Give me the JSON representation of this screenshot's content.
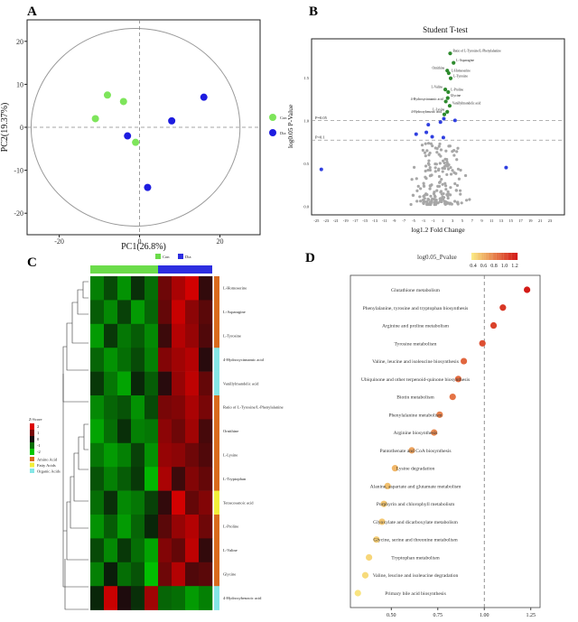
{
  "panels": {
    "a": "A",
    "b": "B",
    "c": "C",
    "d": "D"
  },
  "chart_data": [
    {
      "type": "scatter",
      "panel": "A",
      "xlabel": "PC1(26.8%)",
      "ylabel": "PC2(19.37%)",
      "xlim": [
        -28,
        30
      ],
      "ylim": [
        -25,
        25
      ],
      "xticks": [
        "-20",
        "0",
        "20"
      ],
      "yticks": [
        "20",
        "10",
        "0",
        "-10",
        "-20"
      ],
      "legend": [
        "Con",
        "Dia"
      ],
      "series": [
        {
          "name": "Con",
          "color": "#7ee55b",
          "points": [
            [
              -11,
              2
            ],
            [
              -8,
              7.5
            ],
            [
              -4,
              6
            ],
            [
              -1,
              -3.5
            ]
          ]
        },
        {
          "name": "Dia",
          "color": "#1d1ce0",
          "points": [
            [
              -3,
              -2
            ],
            [
              2,
              -14
            ],
            [
              8,
              1.5
            ],
            [
              16,
              7
            ]
          ]
        }
      ]
    },
    {
      "type": "scatter",
      "panel": "B",
      "title": "Student T-test",
      "xlabel": "log1.2 Fold Change",
      "ylabel": "log0.05 P-Value",
      "xlim": [
        -26,
        26
      ],
      "ylim": [
        -0.1,
        1.95
      ],
      "xticks": [
        "-25",
        "-23",
        "-21",
        "-19",
        "-17",
        "-15",
        "-13",
        "-11",
        "-9",
        "-7",
        "-5",
        "-3",
        "-1",
        "1",
        "3",
        "5",
        "7",
        "9",
        "11",
        "13",
        "15",
        "17",
        "19",
        "21",
        "23"
      ],
      "yticks": [
        "0.0",
        "0.5",
        "1.0",
        "1.5"
      ],
      "threshold_labels": [
        "P=0.05",
        "P=0.1"
      ],
      "thresholds": [
        1.0,
        0.77
      ],
      "significant": [
        {
          "label": "Ratio of L-Tyrosine/L-Phenylalanine",
          "x": 2.5,
          "y": 1.78
        },
        {
          "label": "L-Asparagine",
          "x": 3.2,
          "y": 1.67
        },
        {
          "label": "Ornithine",
          "x": 1.9,
          "y": 1.58
        },
        {
          "label": "L-Homoserine",
          "x": 2.2,
          "y": 1.55
        },
        {
          "label": "L-Tyrosine",
          "x": 2.6,
          "y": 1.49
        },
        {
          "label": "L-Valine",
          "x": 1.5,
          "y": 1.36
        },
        {
          "label": "L-Proline",
          "x": 2.1,
          "y": 1.33
        },
        {
          "label": "Glycine",
          "x": 2.0,
          "y": 1.26
        },
        {
          "label": "4-Hydroxycinnamic acid",
          "x": 1.6,
          "y": 1.22
        },
        {
          "label": "Vanillylmandelic acid",
          "x": 2.4,
          "y": 1.17
        },
        {
          "label": "L-Lysine",
          "x": 1.9,
          "y": 1.1
        },
        {
          "label": "4-Hydroxybenzoic acid",
          "x": 1.3,
          "y": 1.07
        }
      ]
    },
    {
      "type": "heatmap",
      "panel": "C",
      "groups": [
        "Con",
        "Dia"
      ],
      "group_colors": {
        "Con": "#6bdc4a",
        "Dia": "#2d2ee0"
      },
      "scale_title": "Z-Score",
      "scale_ticks": [
        "2",
        "1",
        "0",
        "-1",
        "-2"
      ],
      "class_legend": [
        {
          "name": "Amino Acid",
          "color": "#d96a1d"
        },
        {
          "name": "Fatty Acids",
          "color": "#f2ef3a"
        },
        {
          "name": "Organic Acids",
          "color": "#85e6e6"
        }
      ],
      "rows": [
        "L-Homoserine",
        "L-Asparagine",
        "L-Tyrosine",
        "4-Hydroxycinnamic acid",
        "Vanillylmandelic acid",
        "Ratio of L-Tyrosine/L-Phenylalanine",
        "Ornithine",
        "L-Lysine",
        "L-Tryptophan",
        "Tetracosanoic acid",
        "L-Proline",
        "L-Valine",
        "Glycine",
        "4-Hydroxybenzoic acid"
      ],
      "row_class": [
        "Amino Acid",
        "Amino Acid",
        "Amino Acid",
        "Organic Acids",
        "Organic Acids",
        "Amino Acid",
        "Amino Acid",
        "Amino Acid",
        "Amino Acid",
        "Fatty Acids",
        "Amino Acid",
        "Amino Acid",
        "Amino Acid",
        "Organic Acids"
      ],
      "values": [
        [
          -1.2,
          -0.6,
          -1.4,
          -0.3,
          -1.0,
          0.9,
          1.5,
          1.9,
          0.3
        ],
        [
          -0.8,
          -1.3,
          -0.5,
          -1.5,
          -0.9,
          0.8,
          1.8,
          1.2,
          0.7
        ],
        [
          -1.5,
          -0.4,
          -1.1,
          -0.8,
          -1.3,
          0.4,
          1.6,
          1.3,
          0.6
        ],
        [
          -0.9,
          -1.4,
          -1.0,
          -0.6,
          -1.2,
          1.1,
          1.4,
          1.6,
          0.2
        ],
        [
          -0.4,
          -1.1,
          -1.6,
          -0.2,
          -0.8,
          0.2,
          1.3,
          1.7,
          0.8
        ],
        [
          -1.3,
          -0.9,
          -0.7,
          -1.4,
          -0.6,
          1.0,
          1.1,
          1.5,
          1.0
        ],
        [
          -1.6,
          -1.0,
          -0.3,
          -1.2,
          -1.1,
          1.2,
          0.9,
          1.4,
          0.5
        ],
        [
          -1.1,
          -1.5,
          -1.2,
          -0.5,
          -1.4,
          1.3,
          1.2,
          0.9,
          0.6
        ],
        [
          -0.7,
          -1.2,
          -0.8,
          -0.4,
          -1.8,
          1.5,
          0.4,
          1.1,
          0.8
        ],
        [
          -1.0,
          -0.3,
          -1.3,
          -1.1,
          -0.5,
          0.3,
          1.9,
          0.8,
          1.1
        ],
        [
          -1.4,
          -0.8,
          -1.5,
          -0.9,
          -0.2,
          0.7,
          1.3,
          1.6,
          0.9
        ],
        [
          -0.6,
          -1.3,
          -0.4,
          -1.0,
          -1.6,
          1.1,
          0.8,
          1.7,
          0.3
        ],
        [
          -1.2,
          -0.1,
          -1.0,
          -0.7,
          -1.9,
          0.9,
          1.6,
          0.6,
          0.7
        ],
        [
          -0.2,
          1.8,
          0.1,
          -0.3,
          1.4,
          -0.9,
          -1.0,
          -1.5,
          -1.2
        ]
      ]
    },
    {
      "type": "scatter",
      "panel": "D",
      "legend_title": "log0.05_Pvalue",
      "colorbar_ticks": [
        "0.4",
        "0.6",
        "0.8",
        "1.0",
        "1.2"
      ],
      "color_range": [
        0.3,
        1.25
      ],
      "xlim": [
        0.28,
        1.3
      ],
      "xticks": [
        "0.50",
        "0.75",
        "1.00",
        "1.25"
      ],
      "vline": 1.0,
      "categories": [
        "Glutathione metabolism",
        "Phenylalanine, tyrosine and tryptophan biosynthesis",
        "Arginine and proline metabolism",
        "Tyrosine metabolism",
        "Valine, leucine and isoleucine biosynthesis",
        "Ubiquinone and other terpenoid-quinone biosynthesis",
        "Biotin metabolism",
        "Phenylalanine metabolism",
        "Arginine biosynthesis",
        "Pantothenate and CoA biosynthesis",
        "Lysine degradation",
        "Alanine, aspartate and glutamate metabolism",
        "Porphyrin and chlorophyll metabolism",
        "Glyoxylate and dicarboxylate metabolism",
        "Glycine, serine and threonine metabolism",
        "Tryptophan metabolism",
        "Valine, leucine and isoleucine degradation",
        "Primary bile acid biosynthesis"
      ],
      "values": [
        1.23,
        1.1,
        1.05,
        0.99,
        0.89,
        0.86,
        0.83,
        0.76,
        0.73,
        0.61,
        0.52,
        0.48,
        0.46,
        0.45,
        0.42,
        0.38,
        0.36,
        0.32
      ]
    }
  ]
}
